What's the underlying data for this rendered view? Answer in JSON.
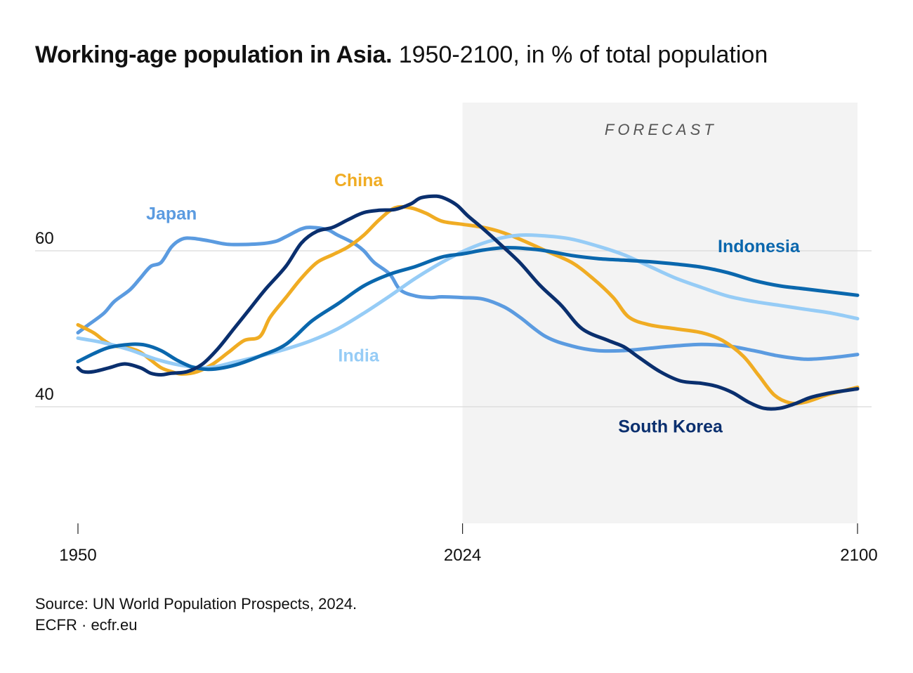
{
  "header": {
    "title_bold": "Working-age population in Asia.",
    "title_rest": "1950-2100, in % of total population"
  },
  "footer": {
    "source": "Source: UN World Population Prospects, 2024.",
    "credit": "ECFR · ecfr.eu"
  },
  "chart_data": {
    "type": "line",
    "title": "Working-age population in Asia.",
    "subtitle": "1950-2100, in % of total population",
    "xlabel": "",
    "ylabel": "",
    "xlim": [
      1950,
      2100
    ],
    "ylim": [
      25,
      80
    ],
    "x_ticks": [
      1950,
      2024,
      2100
    ],
    "y_ticks": [
      40,
      60
    ],
    "grid": "horizontal at 40 and 60",
    "forecast_region": {
      "label": "FORECAST",
      "from": 2024,
      "to": 2100,
      "color": "#f3f3f3"
    },
    "series": [
      {
        "name": "Japan",
        "color": "#5b9be0",
        "label_x": 1968,
        "label_y": 64.0,
        "points": [
          [
            1950,
            49.5
          ],
          [
            1952,
            50.5
          ],
          [
            1955,
            52.0
          ],
          [
            1957,
            53.5
          ],
          [
            1960,
            55.0
          ],
          [
            1962,
            56.5
          ],
          [
            1964,
            58.0
          ],
          [
            1966,
            58.5
          ],
          [
            1968,
            60.5
          ],
          [
            1970,
            61.5
          ],
          [
            1972,
            61.6
          ],
          [
            1975,
            61.3
          ],
          [
            1978,
            60.9
          ],
          [
            1980,
            60.8
          ],
          [
            1985,
            60.9
          ],
          [
            1988,
            61.2
          ],
          [
            1990,
            61.8
          ],
          [
            1993,
            62.8
          ],
          [
            1995,
            63.0
          ],
          [
            1998,
            62.7
          ],
          [
            2000,
            62.0
          ],
          [
            2003,
            61.0
          ],
          [
            2005,
            60.0
          ],
          [
            2007,
            58.5
          ],
          [
            2010,
            57.0
          ],
          [
            2012,
            55.0
          ],
          [
            2015,
            54.2
          ],
          [
            2018,
            54.0
          ],
          [
            2020,
            54.1
          ],
          [
            2024,
            54.0
          ],
          [
            2028,
            53.8
          ],
          [
            2032,
            52.8
          ],
          [
            2035,
            51.5
          ],
          [
            2040,
            49.0
          ],
          [
            2045,
            47.8
          ],
          [
            2050,
            47.2
          ],
          [
            2055,
            47.2
          ],
          [
            2060,
            47.5
          ],
          [
            2065,
            47.8
          ],
          [
            2070,
            48.0
          ],
          [
            2075,
            47.8
          ],
          [
            2080,
            47.2
          ],
          [
            2085,
            46.5
          ],
          [
            2090,
            46.1
          ],
          [
            2095,
            46.3
          ],
          [
            2100,
            46.7
          ]
        ]
      },
      {
        "name": "China",
        "color": "#f0ac23",
        "label_x": 2004,
        "label_y": 68.3,
        "points": [
          [
            1950,
            50.5
          ],
          [
            1953,
            49.5
          ],
          [
            1955,
            48.5
          ],
          [
            1957,
            47.8
          ],
          [
            1960,
            47.5
          ],
          [
            1962,
            47.0
          ],
          [
            1964,
            46.0
          ],
          [
            1966,
            45.0
          ],
          [
            1968,
            44.5
          ],
          [
            1970,
            44.2
          ],
          [
            1973,
            44.5
          ],
          [
            1976,
            45.5
          ],
          [
            1979,
            47.0
          ],
          [
            1982,
            48.5
          ],
          [
            1985,
            49.0
          ],
          [
            1987,
            51.5
          ],
          [
            1990,
            54.0
          ],
          [
            1993,
            56.5
          ],
          [
            1996,
            58.5
          ],
          [
            1999,
            59.5
          ],
          [
            2002,
            60.5
          ],
          [
            2005,
            62.0
          ],
          [
            2008,
            64.0
          ],
          [
            2011,
            65.5
          ],
          [
            2014,
            65.5
          ],
          [
            2017,
            64.8
          ],
          [
            2020,
            63.8
          ],
          [
            2024,
            63.4
          ],
          [
            2028,
            63.0
          ],
          [
            2031,
            62.5
          ],
          [
            2035,
            61.5
          ],
          [
            2040,
            60.0
          ],
          [
            2045,
            58.5
          ],
          [
            2049,
            56.5
          ],
          [
            2053,
            54.0
          ],
          [
            2056,
            51.5
          ],
          [
            2060,
            50.5
          ],
          [
            2065,
            50.0
          ],
          [
            2070,
            49.5
          ],
          [
            2074,
            48.5
          ],
          [
            2078,
            46.5
          ],
          [
            2081,
            44.0
          ],
          [
            2084,
            41.5
          ],
          [
            2087,
            40.5
          ],
          [
            2090,
            40.6
          ],
          [
            2094,
            41.5
          ],
          [
            2097,
            42.0
          ],
          [
            2100,
            42.5
          ]
        ]
      },
      {
        "name": "India",
        "color": "#96ccf6",
        "label_x": 2004,
        "label_y": 45.8,
        "points": [
          [
            1950,
            48.8
          ],
          [
            1955,
            48.2
          ],
          [
            1960,
            47.3
          ],
          [
            1965,
            46.1
          ],
          [
            1970,
            45.3
          ],
          [
            1975,
            45.0
          ],
          [
            1980,
            45.7
          ],
          [
            1985,
            46.5
          ],
          [
            1990,
            47.4
          ],
          [
            1995,
            48.5
          ],
          [
            2000,
            50.0
          ],
          [
            2005,
            52.0
          ],
          [
            2010,
            54.2
          ],
          [
            2015,
            56.5
          ],
          [
            2020,
            58.5
          ],
          [
            2025,
            60.2
          ],
          [
            2030,
            61.4
          ],
          [
            2035,
            62.0
          ],
          [
            2040,
            61.9
          ],
          [
            2045,
            61.5
          ],
          [
            2050,
            60.6
          ],
          [
            2055,
            59.5
          ],
          [
            2060,
            58.0
          ],
          [
            2065,
            56.5
          ],
          [
            2070,
            55.3
          ],
          [
            2075,
            54.2
          ],
          [
            2080,
            53.5
          ],
          [
            2085,
            53.0
          ],
          [
            2090,
            52.5
          ],
          [
            2095,
            52.0
          ],
          [
            2100,
            51.3
          ]
        ]
      },
      {
        "name": "Indonesia",
        "color": "#0a67ad",
        "label_x": 2081,
        "label_y": 59.8,
        "points": [
          [
            1950,
            45.8
          ],
          [
            1953,
            46.8
          ],
          [
            1956,
            47.6
          ],
          [
            1960,
            48.0
          ],
          [
            1963,
            47.9
          ],
          [
            1966,
            47.2
          ],
          [
            1969,
            46.0
          ],
          [
            1972,
            45.1
          ],
          [
            1975,
            44.8
          ],
          [
            1978,
            45.0
          ],
          [
            1981,
            45.5
          ],
          [
            1985,
            46.5
          ],
          [
            1990,
            48.0
          ],
          [
            1995,
            51.0
          ],
          [
            2000,
            53.2
          ],
          [
            2005,
            55.5
          ],
          [
            2010,
            57.0
          ],
          [
            2015,
            58.0
          ],
          [
            2020,
            59.2
          ],
          [
            2024,
            59.6
          ],
          [
            2028,
            60.1
          ],
          [
            2032,
            60.4
          ],
          [
            2036,
            60.3
          ],
          [
            2040,
            60.0
          ],
          [
            2045,
            59.4
          ],
          [
            2050,
            59.0
          ],
          [
            2055,
            58.8
          ],
          [
            2060,
            58.6
          ],
          [
            2065,
            58.3
          ],
          [
            2070,
            57.9
          ],
          [
            2075,
            57.2
          ],
          [
            2080,
            56.2
          ],
          [
            2085,
            55.5
          ],
          [
            2090,
            55.1
          ],
          [
            2095,
            54.7
          ],
          [
            2100,
            54.3
          ]
        ]
      },
      {
        "name": "South Korea",
        "color": "#0a2f6e",
        "label_x": 2064,
        "label_y": 36.7,
        "points": [
          [
            1950,
            45.0
          ],
          [
            1951,
            44.5
          ],
          [
            1953,
            44.5
          ],
          [
            1956,
            45.0
          ],
          [
            1959,
            45.5
          ],
          [
            1962,
            45.0
          ],
          [
            1964,
            44.3
          ],
          [
            1966,
            44.1
          ],
          [
            1968,
            44.3
          ],
          [
            1971,
            44.5
          ],
          [
            1974,
            45.5
          ],
          [
            1977,
            47.5
          ],
          [
            1980,
            50.0
          ],
          [
            1983,
            52.5
          ],
          [
            1986,
            55.0
          ],
          [
            1990,
            58.0
          ],
          [
            1993,
            61.0
          ],
          [
            1996,
            62.5
          ],
          [
            1999,
            63.0
          ],
          [
            2002,
            64.0
          ],
          [
            2005,
            64.9
          ],
          [
            2008,
            65.2
          ],
          [
            2011,
            65.3
          ],
          [
            2014,
            66.0
          ],
          [
            2016,
            66.8
          ],
          [
            2019,
            67.0
          ],
          [
            2021,
            66.6
          ],
          [
            2023,
            65.8
          ],
          [
            2025,
            64.5
          ],
          [
            2028,
            62.8
          ],
          [
            2031,
            61.0
          ],
          [
            2035,
            58.5
          ],
          [
            2039,
            55.5
          ],
          [
            2043,
            53.0
          ],
          [
            2047,
            50.0
          ],
          [
            2052,
            48.5
          ],
          [
            2055,
            47.7
          ],
          [
            2058,
            46.3
          ],
          [
            2062,
            44.5
          ],
          [
            2066,
            43.3
          ],
          [
            2070,
            43.0
          ],
          [
            2073,
            42.6
          ],
          [
            2076,
            41.8
          ],
          [
            2079,
            40.6
          ],
          [
            2082,
            39.8
          ],
          [
            2085,
            39.8
          ],
          [
            2088,
            40.4
          ],
          [
            2091,
            41.2
          ],
          [
            2095,
            41.8
          ],
          [
            2100,
            42.3
          ]
        ]
      }
    ]
  }
}
